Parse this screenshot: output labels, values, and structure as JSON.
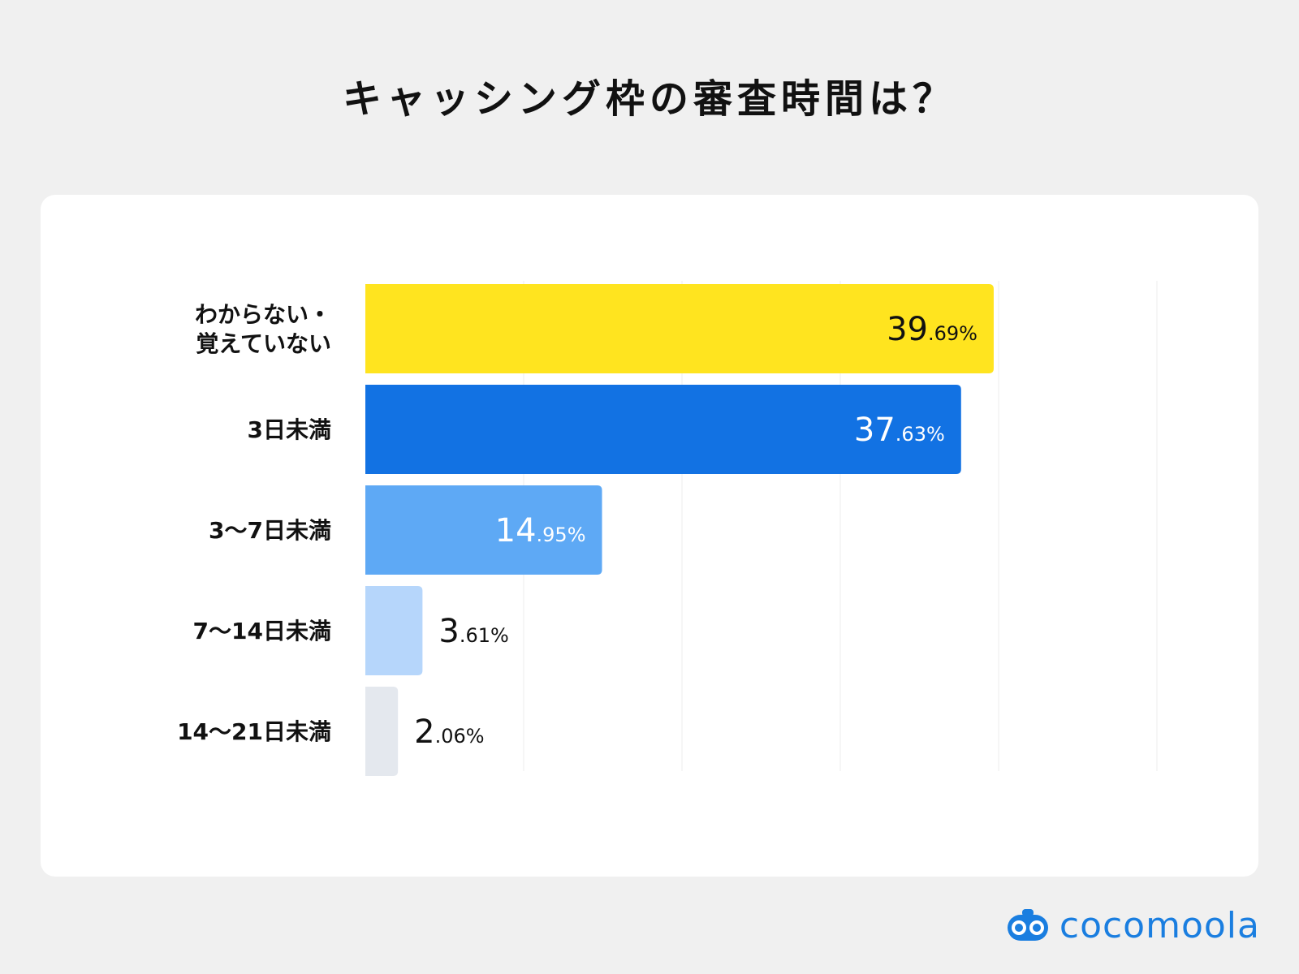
{
  "title": "キャッシング枠の審査時間は？",
  "brand": {
    "name": "cocomoola",
    "icon": "cocomoola-logo-icon",
    "color": "#1a7ee0"
  },
  "chart_data": {
    "type": "bar",
    "orientation": "horizontal",
    "title": "キャッシング枠の審査時間は？",
    "xlabel": "",
    "ylabel": "",
    "xlim": [
      0,
      50
    ],
    "grid": true,
    "unit": "%",
    "categories": [
      [
        "わからない・",
        "覚えていない"
      ],
      [
        "3日未満"
      ],
      [
        "3〜7日未満"
      ],
      [
        "7〜14日未満"
      ],
      [
        "14〜21日未満"
      ]
    ],
    "values": [
      39.69,
      37.63,
      14.95,
      3.61,
      2.06
    ],
    "value_labels": [
      {
        "int": "39",
        "dec": ".69%"
      },
      {
        "int": "37",
        "dec": ".63%"
      },
      {
        "int": "14",
        "dec": ".95%"
      },
      {
        "int": "3",
        "dec": ".61%"
      },
      {
        "int": "2",
        "dec": ".06%"
      }
    ],
    "colors": [
      "#ffe41f",
      "#1272e3",
      "#5ea9f5",
      "#b6d6fb",
      "#e4e8ee"
    ],
    "label_colors": [
      "#111111",
      "#ffffff",
      "#ffffff",
      "#111111",
      "#111111"
    ]
  }
}
